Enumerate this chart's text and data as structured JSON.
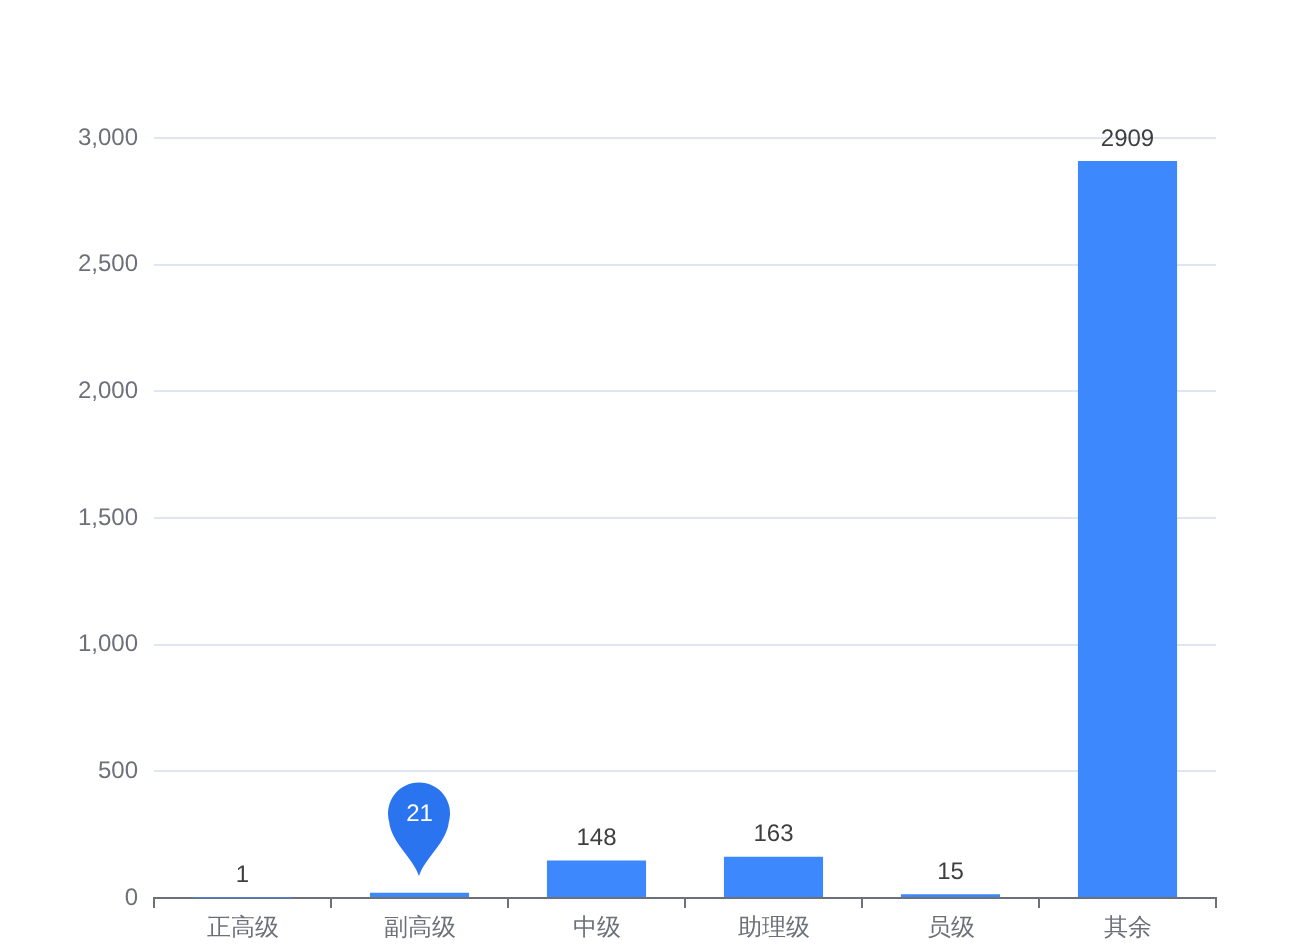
{
  "chart_data": {
    "type": "bar",
    "categories": [
      "正高级",
      "副高级",
      "中级",
      "助理级",
      "员级",
      "其余"
    ],
    "values": [
      1,
      21,
      148,
      163,
      15,
      2909
    ],
    "color": "#3c88fc",
    "value_labels": [
      "1",
      null,
      "148",
      "163",
      "15",
      "2909"
    ],
    "annotations": [
      {
        "text": "21",
        "x": "副高级",
        "y": 21
      }
    ],
    "ylim": [
      0,
      3000
    ],
    "yticks": [
      0,
      500,
      {
        "value": 1000,
        "label": "1,000"
      },
      {
        "value": 1500,
        "label": "1,500"
      },
      {
        "value": 2000,
        "label": "2,000"
      },
      {
        "value": 2500,
        "label": "2,500"
      },
      {
        "value": 3000,
        "label": "3,000"
      }
    ],
    "grid": "y"
  }
}
